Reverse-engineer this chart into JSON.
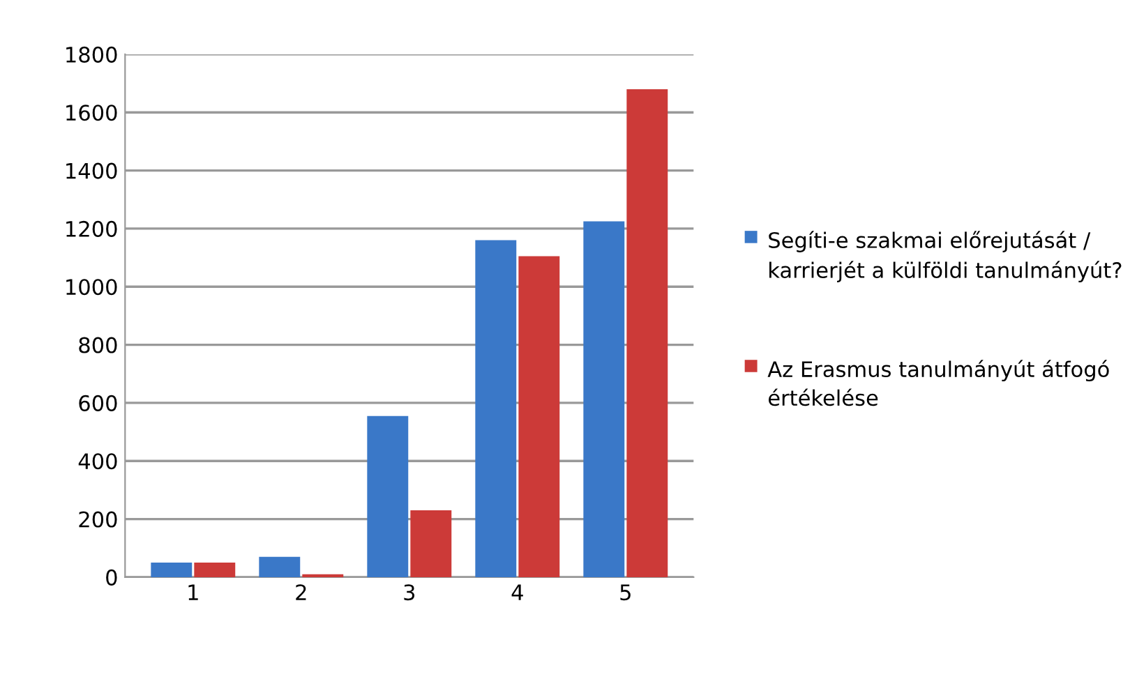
{
  "chart_data": {
    "type": "bar",
    "categories": [
      "1",
      "2",
      "3",
      "4",
      "5"
    ],
    "series": [
      {
        "name": "Segíti-e szakmai előrejutását / karrierjét a külföldi tanulmányút?",
        "color": "#3a78c8",
        "values": [
          50,
          70,
          555,
          1160,
          1225
        ]
      },
      {
        "name": "Az Erasmus tanulmányút átfogó értékelése",
        "color": "#cc3a38",
        "values": [
          50,
          10,
          230,
          1105,
          1680
        ]
      }
    ],
    "ylim": [
      0,
      1800
    ],
    "yticks": [
      0,
      200,
      400,
      600,
      800,
      1000,
      1200,
      1400,
      1600,
      1800
    ],
    "grid": "y",
    "legend": "right"
  }
}
